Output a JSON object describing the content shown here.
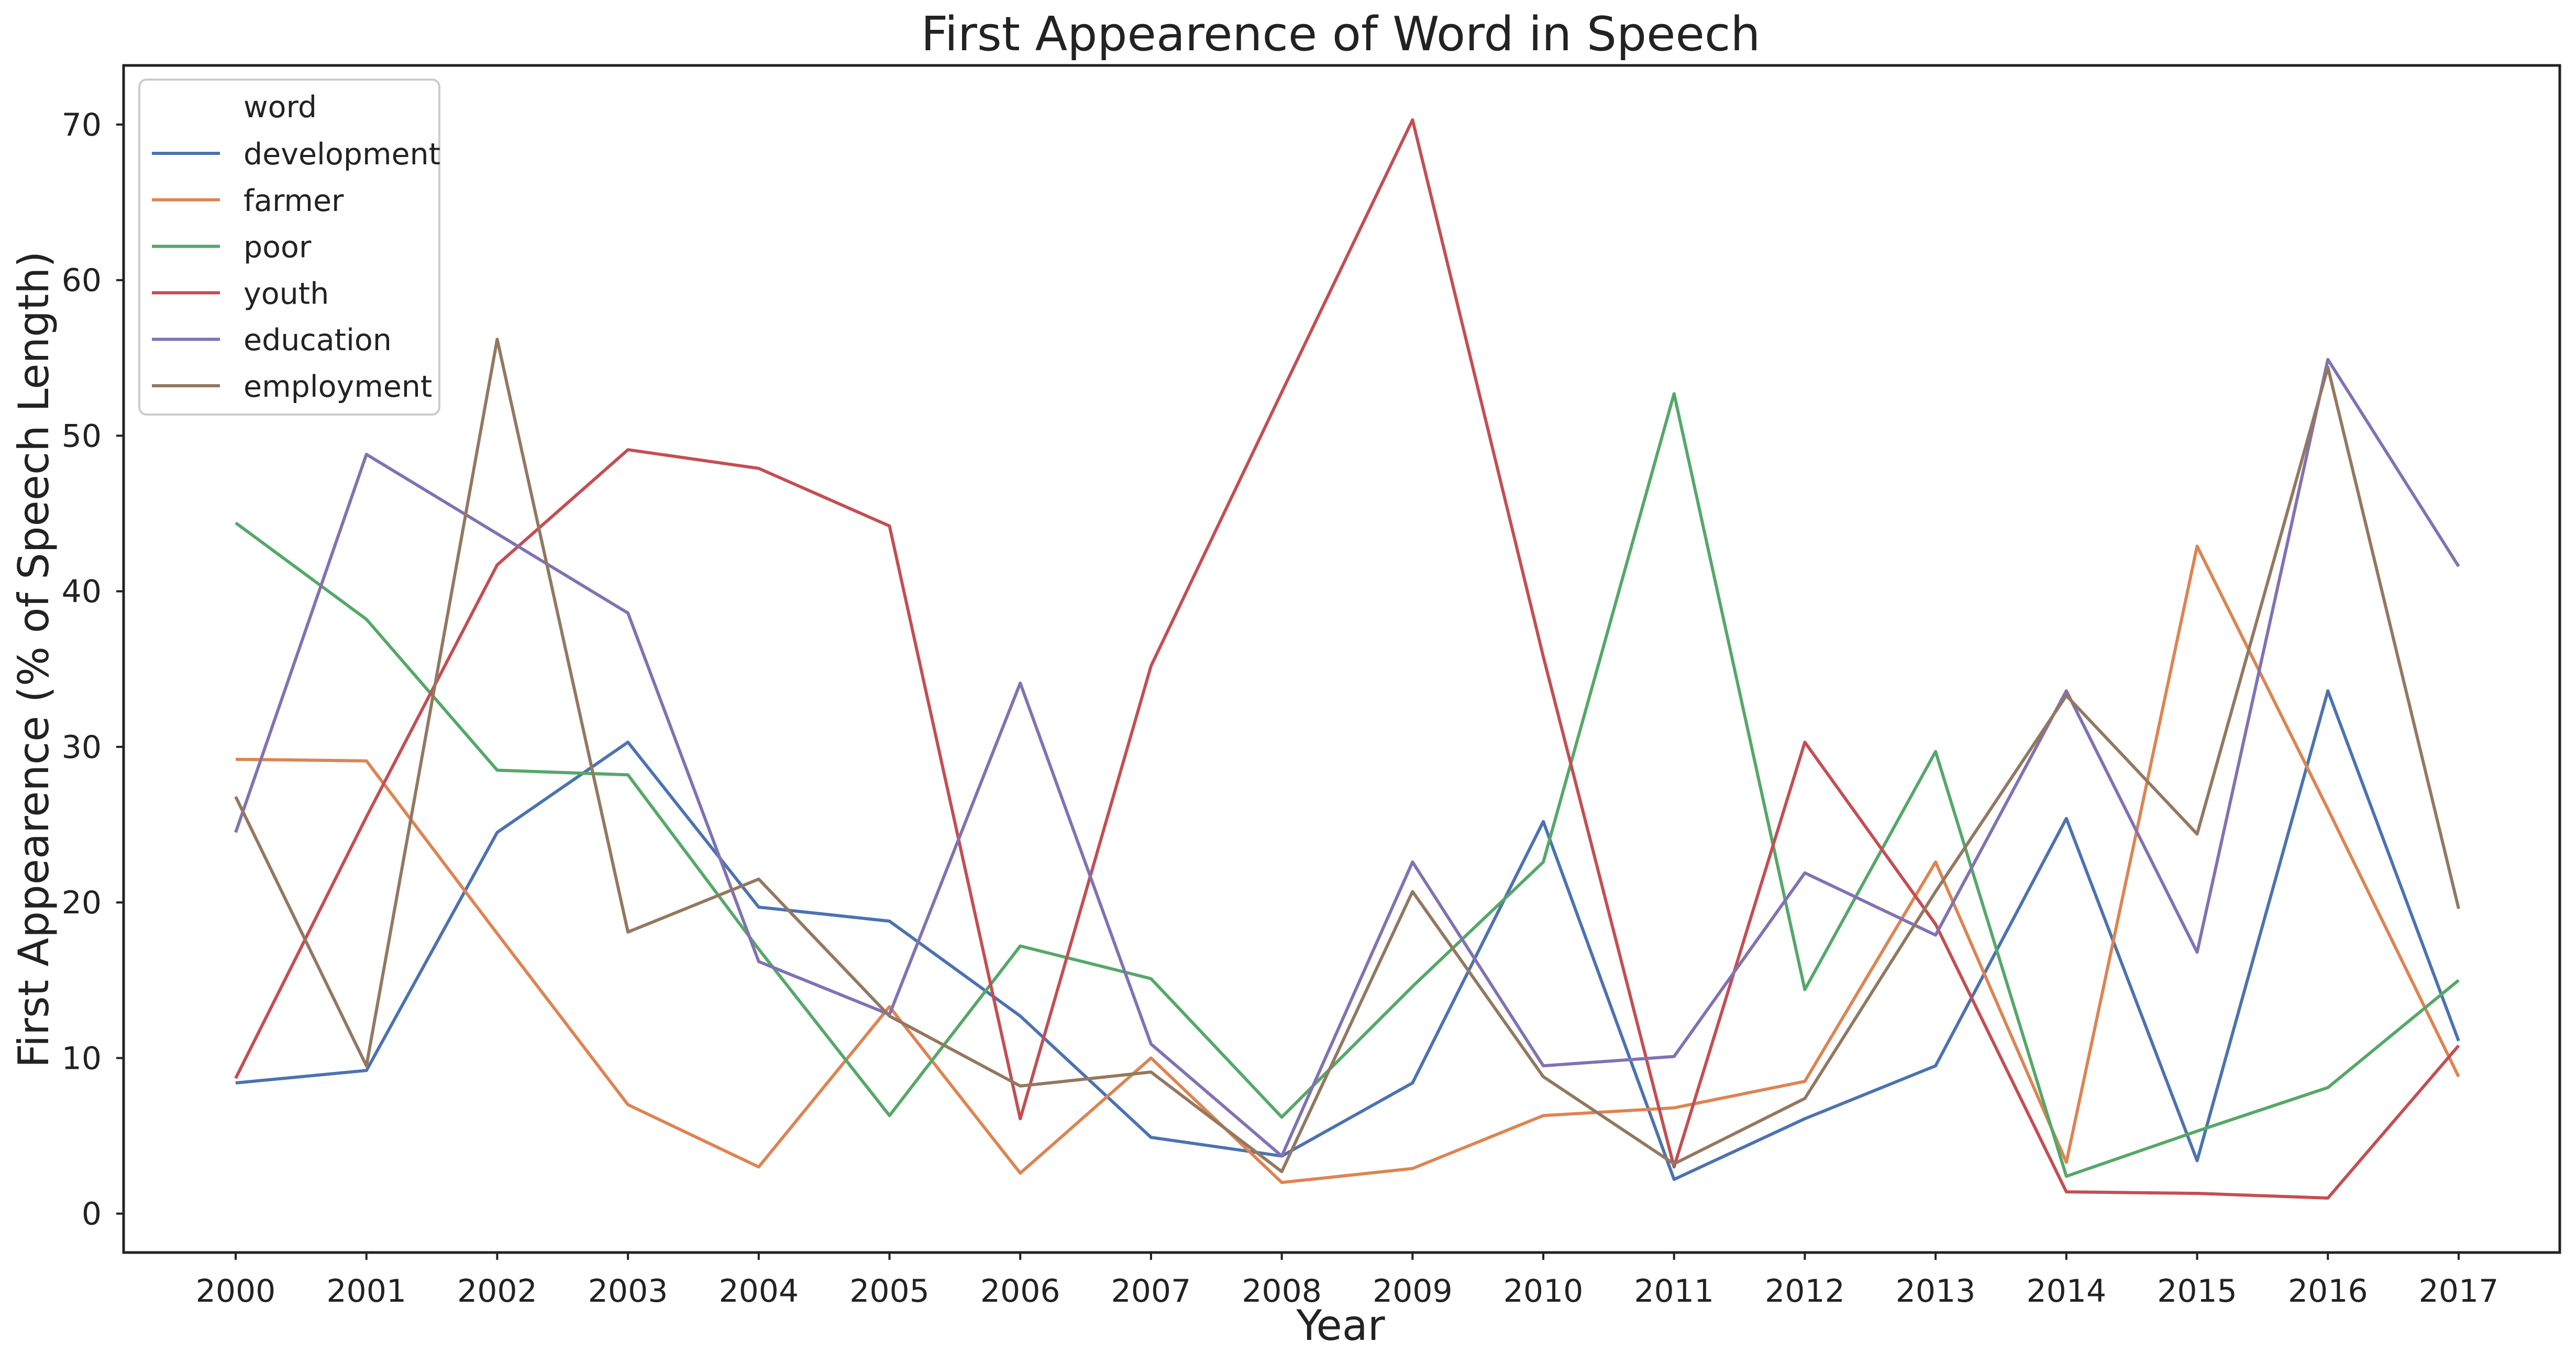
{
  "chart_data": {
    "type": "line",
    "title": "First Appearence of Word in Speech",
    "xlabel": "Year",
    "ylabel": "First Appearence (% of Speech Length)",
    "categories": [
      "2000",
      "2001",
      "2002",
      "2003",
      "2004",
      "2005",
      "2006",
      "2007",
      "2008",
      "2009",
      "2010",
      "2011",
      "2012",
      "2013",
      "2014",
      "2015",
      "2016",
      "2017"
    ],
    "yticks": [
      "0",
      "10",
      "20",
      "30",
      "40",
      "50",
      "60",
      "70"
    ],
    "ylim": [
      -2.5,
      73.8
    ],
    "grid": false,
    "legend": {
      "title": "word",
      "placement": "top-left"
    },
    "series": [
      {
        "name": "development",
        "color": "#4c72b0",
        "values": [
          8.4,
          9.2,
          24.5,
          30.3,
          19.7,
          18.8,
          12.7,
          4.9,
          3.7,
          8.4,
          25.2,
          2.2,
          6.1,
          9.5,
          25.4,
          3.4,
          33.6,
          11.1
        ]
      },
      {
        "name": "farmer",
        "color": "#dd8452",
        "values": [
          29.2,
          29.1,
          18.0,
          7.0,
          3.0,
          13.3,
          2.6,
          10.0,
          2.0,
          2.9,
          6.3,
          6.8,
          8.5,
          22.6,
          3.3,
          42.9,
          26.0,
          8.8
        ]
      },
      {
        "name": "poor",
        "color": "#55a868",
        "values": [
          44.4,
          38.2,
          28.5,
          28.2,
          17.0,
          6.3,
          17.2,
          15.1,
          6.2,
          14.6,
          22.6,
          52.7,
          14.4,
          29.7,
          2.4,
          5.3,
          8.1,
          15.0
        ]
      },
      {
        "name": "youth",
        "color": "#c44e52",
        "values": [
          8.7,
          25.5,
          41.7,
          49.1,
          47.9,
          44.2,
          6.1,
          35.2,
          52.8,
          70.3,
          35.8,
          3.0,
          30.3,
          18.6,
          1.4,
          1.3,
          1.0,
          10.8
        ]
      },
      {
        "name": "education",
        "color": "#8172b3",
        "values": [
          24.5,
          48.8,
          43.7,
          38.6,
          16.2,
          12.8,
          34.1,
          10.9,
          3.7,
          22.6,
          9.5,
          10.1,
          21.9,
          17.9,
          33.6,
          16.8,
          54.9,
          41.6
        ]
      },
      {
        "name": "employment",
        "color": "#937860",
        "values": [
          26.8,
          9.5,
          56.2,
          18.1,
          21.5,
          12.7,
          8.2,
          9.1,
          2.7,
          20.7,
          8.8,
          3.2,
          7.4,
          20.7,
          33.3,
          24.4,
          54.4,
          19.6
        ]
      }
    ]
  }
}
